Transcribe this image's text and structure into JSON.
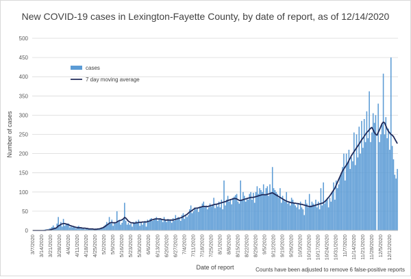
{
  "chart_data": {
    "type": "bar+line",
    "title": "New COVID-19 cases in Lexington-Fayette County, by date of report, as of 12/14/2020",
    "xlabel": "Date of report",
    "ylabel": "Number of cases",
    "ylim": [
      0,
      500
    ],
    "yticks": [
      0,
      50,
      100,
      150,
      200,
      250,
      300,
      350,
      400,
      450,
      500
    ],
    "xticks": [
      "3/7/2020",
      "3/14/2020",
      "3/21/2020",
      "3/28/2020",
      "4/4/2020",
      "4/11/2020",
      "4/18/2020",
      "4/25/2020",
      "5/2/2020",
      "5/9/2020",
      "5/16/2020",
      "5/23/2020",
      "5/30/2020",
      "6/6/2020",
      "6/13/2020",
      "6/20/2020",
      "6/27/2020",
      "7/4/2020",
      "7/11/2020",
      "7/18/2020",
      "7/25/2020",
      "8/1/2020",
      "8/8/2020",
      "8/15/2020",
      "8/22/2020",
      "8/29/2020",
      "9/5/2020",
      "9/12/2020",
      "9/19/2020",
      "9/26/2020",
      "10/3/2020",
      "10/10/2020",
      "10/17/2020",
      "10/24/2020",
      "10/31/2020",
      "11/7/2020",
      "11/14/2020",
      "11/21/2020",
      "11/28/2020",
      "12/5/2020",
      "12/12/2020"
    ],
    "grid": true,
    "legend_position": "top-left",
    "annotation": "Counts have been adjusted to remove 6 false-positive reports",
    "x_start": "3/7/2020",
    "x_end": "12/14/2020",
    "series": [
      {
        "name": "cases",
        "type": "bar",
        "color": "#5b9bd5",
        "values": [
          0,
          0,
          0,
          0,
          0,
          0,
          0,
          0,
          1,
          2,
          3,
          3,
          3,
          5,
          6,
          9,
          13,
          8,
          6,
          18,
          35,
          15,
          22,
          10,
          30,
          12,
          16,
          18,
          18,
          8,
          10,
          8,
          10,
          8,
          5,
          10,
          12,
          5,
          8,
          4,
          5,
          3,
          5,
          4,
          3,
          3,
          3,
          3,
          3,
          5,
          5,
          3,
          4,
          5,
          8,
          8,
          12,
          15,
          22,
          18,
          35,
          18,
          28,
          12,
          22,
          18,
          50,
          22,
          25,
          15,
          20,
          28,
          72,
          25,
          15,
          20,
          15,
          18,
          10,
          22,
          18,
          25,
          20,
          28,
          12,
          22,
          15,
          20,
          25,
          10,
          28,
          22,
          30,
          32,
          25,
          28,
          30,
          35,
          25,
          30,
          32,
          28,
          22,
          35,
          28,
          22,
          30,
          25,
          28,
          20,
          32,
          25,
          40,
          28,
          35,
          30,
          25,
          40,
          45,
          30,
          38,
          35,
          40,
          55,
          65,
          45,
          50,
          60,
          55,
          58,
          48,
          62,
          60,
          70,
          75,
          60,
          65,
          55,
          60,
          70,
          62,
          65,
          85,
          58,
          70,
          62,
          75,
          60,
          80,
          55,
          130,
          65,
          80,
          90,
          75,
          80,
          68,
          85,
          88,
          92,
          95,
          75,
          70,
          130,
          80,
          100,
          90,
          75,
          85,
          80,
          95,
          100,
          80,
          98,
          72,
          100,
          115,
          95,
          110,
          105,
          100,
          120,
          95,
          110,
          115,
          90,
          120,
          100,
          165,
          110,
          105,
          100,
          95,
          85,
          110,
          72,
          90,
          80,
          75,
          100,
          70,
          75,
          65,
          85,
          80,
          70,
          65,
          60,
          70,
          55,
          75,
          60,
          55,
          40,
          80,
          70,
          60,
          95,
          65,
          75,
          70,
          65,
          80,
          60,
          75,
          55,
          110,
          65,
          125,
          70,
          80,
          85,
          60,
          85,
          75,
          100,
          125,
          80,
          130,
          110,
          120,
          140,
          150,
          165,
          200,
          130,
          200,
          175,
          210,
          160,
          190,
          180,
          255,
          170,
          250,
          190,
          270,
          200,
          285,
          215,
          290,
          230,
          310,
          240,
          362,
          230,
          255,
          305,
          280,
          300,
          0,
          330,
          230,
          250,
          275,
          408,
          250,
          295,
          240,
          265,
          210,
          450,
          220,
          185,
          145,
          135,
          160
        ]
      },
      {
        "name": "7 day moving average",
        "type": "line",
        "color": "#1f2a5a",
        "values": [
          0,
          0,
          0,
          0,
          0,
          0,
          0,
          0,
          0,
          0,
          0,
          1,
          1,
          1,
          2,
          3,
          4,
          5,
          6,
          8,
          12,
          13,
          16,
          17,
          18,
          18,
          17,
          16,
          15,
          13,
          12,
          11,
          10,
          9,
          8,
          7,
          7,
          7,
          7,
          6,
          6,
          6,
          5,
          5,
          4,
          4,
          4,
          4,
          3,
          3,
          3,
          4,
          4,
          5,
          6,
          7,
          9,
          11,
          14,
          16,
          19,
          20,
          21,
          20,
          20,
          20,
          22,
          24,
          26,
          26,
          28,
          30,
          34,
          32,
          28,
          24,
          22,
          20,
          20,
          19,
          19,
          20,
          20,
          21,
          21,
          21,
          22,
          22,
          22,
          22,
          23,
          24,
          25,
          27,
          28,
          29,
          30,
          30,
          30,
          30,
          30,
          29,
          28,
          28,
          27,
          27,
          27,
          27,
          27,
          27,
          27,
          28,
          29,
          30,
          31,
          32,
          33,
          34,
          36,
          38,
          40,
          42,
          45,
          48,
          50,
          52,
          55,
          57,
          58,
          58,
          59,
          60,
          61,
          62,
          63,
          62,
          62,
          62,
          63,
          64,
          65,
          66,
          67,
          68,
          68,
          69,
          70,
          71,
          72,
          73,
          74,
          75,
          76,
          78,
          79,
          80,
          81,
          82,
          83,
          83,
          82,
          80,
          78,
          78,
          79,
          80,
          81,
          82,
          83,
          84,
          85,
          86,
          86,
          86,
          87,
          88,
          89,
          90,
          91,
          92,
          93,
          93,
          93,
          93,
          94,
          95,
          96,
          97,
          98,
          96,
          94,
          92,
          90,
          88,
          86,
          84,
          82,
          80,
          78,
          76,
          75,
          74,
          73,
          72,
          72,
          71,
          71,
          70,
          70,
          69,
          68,
          68,
          67,
          66,
          65,
          64,
          63,
          62,
          62,
          63,
          64,
          65,
          66,
          67,
          68,
          69,
          70,
          71,
          72,
          75,
          78,
          82,
          86,
          90,
          95,
          100,
          105,
          110,
          118,
          125,
          133,
          140,
          148,
          155,
          160,
          165,
          170,
          175,
          182,
          188,
          195,
          200,
          205,
          210,
          215,
          220,
          225,
          230,
          236,
          240,
          245,
          250,
          255,
          258,
          262,
          266,
          268,
          262,
          255,
          250,
          248,
          255,
          262,
          270,
          278,
          282,
          280,
          272,
          264,
          258,
          254,
          250,
          248,
          244,
          238,
          232,
          226
        ]
      }
    ]
  }
}
